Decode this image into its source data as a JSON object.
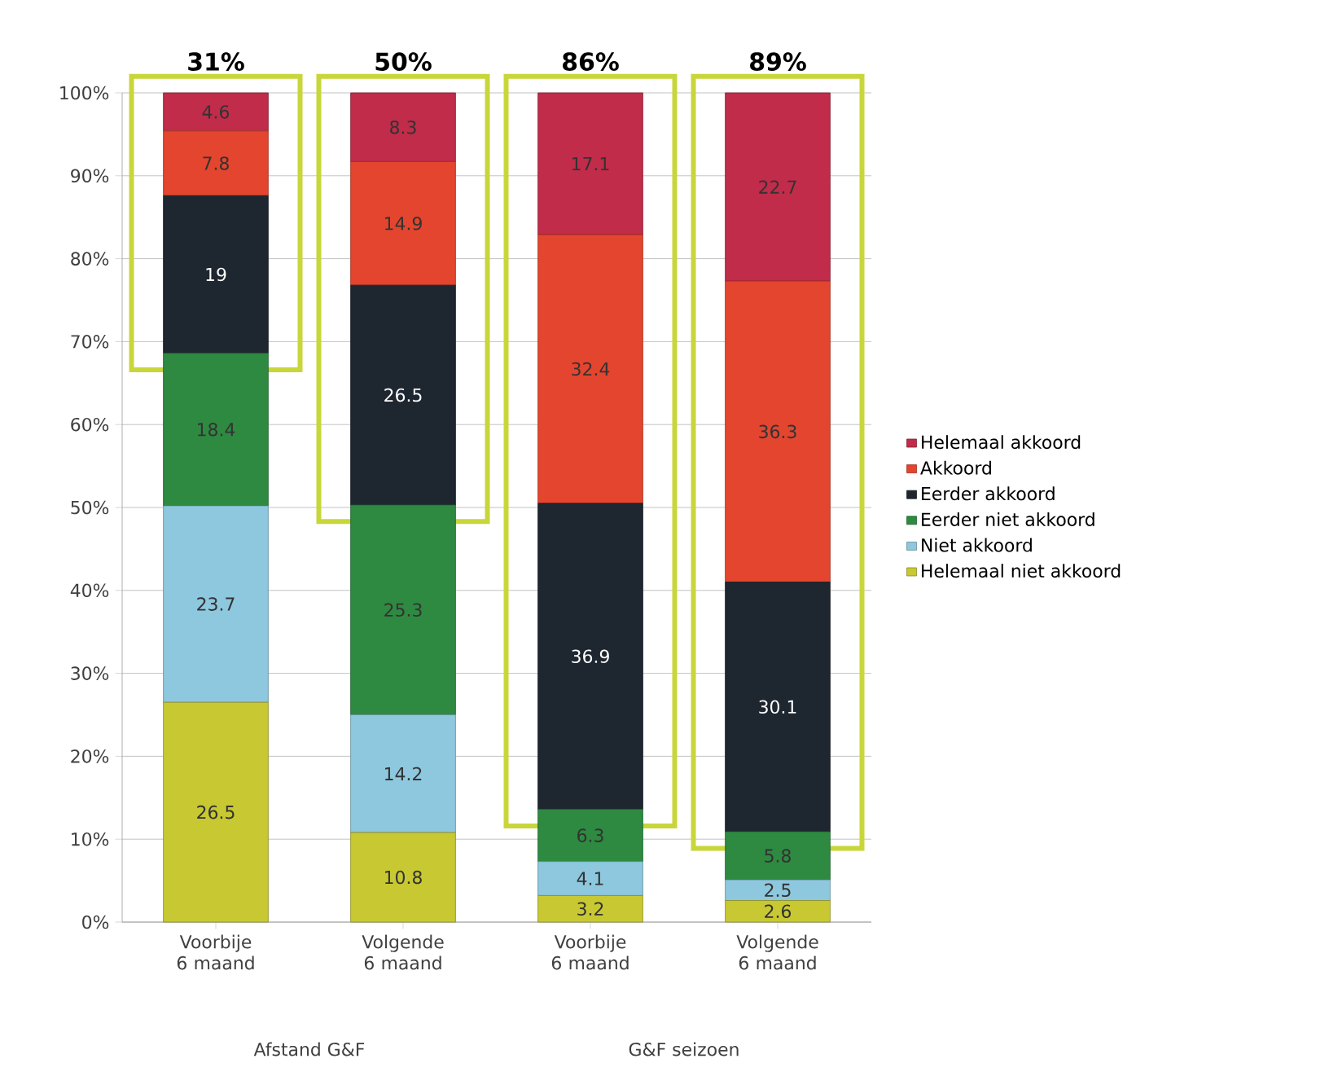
{
  "chart_data": {
    "type": "bar",
    "stacked": true,
    "categories": [
      "Voorbije 6 maand",
      "Volgende 6 maand",
      "Voorbije 6 maand",
      "Volgende 6 maand"
    ],
    "series": [
      {
        "name": "Helemaal niet akkoord",
        "color": "#c8c832",
        "values": [
          26.5,
          10.8,
          3.2,
          2.6
        ]
      },
      {
        "name": "Niet akkoord",
        "color": "#8ec8de",
        "values": [
          23.7,
          14.2,
          4.1,
          2.5
        ]
      },
      {
        "name": "Eerder niet akkoord",
        "color": "#2e8a40",
        "values": [
          18.4,
          25.3,
          6.3,
          5.8
        ]
      },
      {
        "name": "Eerder akkoord",
        "color": "#1e2630",
        "values": [
          19,
          26.5,
          36.9,
          30.1
        ]
      },
      {
        "name": "Akkoord",
        "color": "#e4452e",
        "values": [
          7.8,
          14.9,
          32.4,
          36.3
        ]
      },
      {
        "name": "Helemaal akkoord",
        "color": "#c02c4a",
        "values": [
          4.6,
          8.3,
          17.1,
          22.7
        ]
      }
    ],
    "ylim": [
      0,
      100
    ],
    "yticks": [
      {
        "value": 0,
        "label": "0%"
      },
      {
        "value": 10,
        "label": "10%"
      },
      {
        "value": 20,
        "label": "20%"
      },
      {
        "value": 30,
        "label": "30%"
      },
      {
        "value": 40,
        "label": "40%"
      },
      {
        "value": 50,
        "label": "50%"
      },
      {
        "value": 60,
        "label": "60%"
      },
      {
        "value": 70,
        "label": "70%"
      },
      {
        "value": 80,
        "label": "80%"
      },
      {
        "value": 90,
        "label": "90%"
      },
      {
        "value": 100,
        "label": "100%"
      }
    ],
    "grid": "y",
    "legend": "right",
    "data_labels": true,
    "annotations": [
      "31%",
      "50%",
      "86%",
      "89%",
      "Afstand G&F",
      "G&F seizoen"
    ]
  }
}
